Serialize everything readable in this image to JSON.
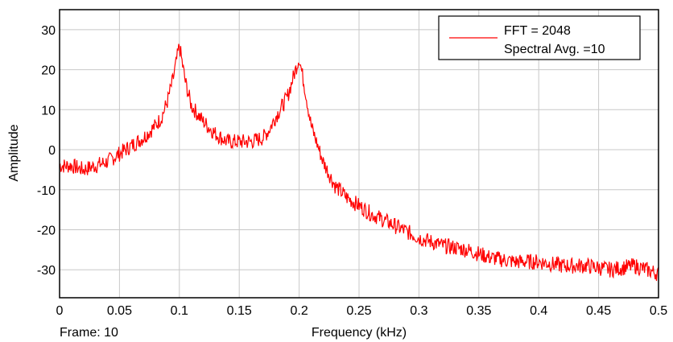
{
  "chart_data": {
    "type": "line",
    "xlabel": "Frequency (kHz)",
    "ylabel": "Amplitude",
    "footer_label": "Frame: 10",
    "xlim": [
      0,
      0.5
    ],
    "ylim": [
      -37,
      35
    ],
    "x_ticks": [
      0,
      0.05,
      0.1,
      0.15,
      0.2,
      0.25,
      0.3,
      0.35,
      0.4,
      0.45,
      0.5
    ],
    "x_tick_labels": [
      "0",
      "0.05",
      "0.1",
      "0.15",
      "0.2",
      "0.25",
      "0.3",
      "0.35",
      "0.4",
      "0.45",
      "0.5"
    ],
    "y_ticks": [
      30,
      20,
      10,
      0,
      -10,
      -20,
      -30
    ],
    "y_tick_labels": [
      "30",
      "20",
      "10",
      "0",
      "-10",
      "-20",
      "-30"
    ],
    "grid": true,
    "legend": {
      "placement": "top-right",
      "entries": [
        "FFT = 2048",
        "Spectral Avg. =10"
      ]
    },
    "colors": {
      "series": "#ff0000",
      "grid": "#c8c8c8",
      "frame": "#000000"
    },
    "series": [
      {
        "x": [
          0,
          0.01,
          0.02,
          0.03,
          0.04,
          0.045,
          0.05,
          0.06,
          0.07,
          0.08,
          0.085,
          0.09,
          0.095,
          0.1,
          0.105,
          0.11,
          0.12,
          0.13,
          0.14,
          0.15,
          0.16,
          0.17,
          0.175,
          0.18,
          0.19,
          0.195,
          0.2,
          0.205,
          0.21,
          0.22,
          0.23,
          0.24,
          0.25,
          0.26,
          0.28,
          0.3,
          0.32,
          0.34,
          0.36,
          0.38,
          0.4,
          0.42,
          0.44,
          0.46,
          0.48,
          0.5
        ],
        "y": [
          -4,
          -4,
          -5,
          -4,
          -3,
          -2,
          -1,
          1,
          3,
          6,
          8,
          12,
          18,
          26,
          17,
          11,
          7,
          4,
          2,
          2,
          2,
          3,
          5,
          8,
          13,
          18,
          23,
          15,
          6,
          -3,
          -9,
          -12,
          -14,
          -16,
          -19,
          -22,
          -24,
          -25,
          -27,
          -28,
          -28,
          -29,
          -29,
          -30,
          -29,
          -31
        ]
      }
    ]
  }
}
